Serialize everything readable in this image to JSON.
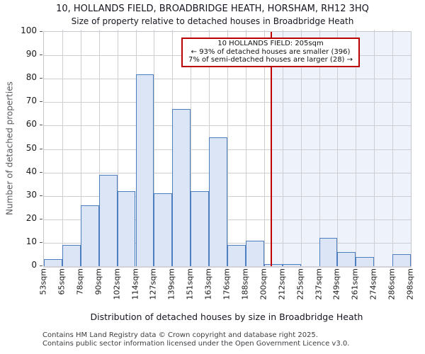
{
  "title": "10, HOLLANDS FIELD, BROADBRIDGE HEATH, HORSHAM, RH12 3HQ",
  "subtitle": "Size of property relative to detached houses in Broadbridge Heath",
  "annotation": {
    "line1": "10 HOLLANDS FIELD: 205sqm",
    "line2": "← 93% of detached houses are smaller (396)",
    "line3": "7% of semi-detached houses are larger (28) →"
  },
  "marker": {
    "value_sqm": 205,
    "line_color": "#c00000",
    "region_color": "#edf2fb"
  },
  "chart_data": {
    "type": "bar",
    "title": "10, HOLLANDS FIELD, BROADBRIDGE HEATH, HORSHAM, RH12 3HQ",
    "subtitle": "Size of property relative to detached houses in Broadbridge Heath",
    "xlabel": "Distribution of detached houses by size in Broadbridge Heath",
    "ylabel": "Number of detached properties",
    "bin_edges_sqm": [
      53,
      65,
      78,
      90,
      102,
      114,
      127,
      139,
      151,
      163,
      176,
      188,
      200,
      212,
      225,
      237,
      249,
      261,
      274,
      286,
      298
    ],
    "x_tick_labels": [
      "53sqm",
      "65sqm",
      "78sqm",
      "90sqm",
      "102sqm",
      "114sqm",
      "127sqm",
      "139sqm",
      "151sqm",
      "163sqm",
      "176sqm",
      "188sqm",
      "200sqm",
      "212sqm",
      "225sqm",
      "237sqm",
      "249sqm",
      "261sqm",
      "274sqm",
      "286sqm",
      "298sqm"
    ],
    "values": [
      3,
      9,
      26,
      39,
      32,
      82,
      31,
      67,
      32,
      55,
      9,
      11,
      1,
      1,
      0,
      12,
      6,
      4,
      0,
      5
    ],
    "xlim": [
      53,
      298
    ],
    "ylim": [
      0,
      100
    ],
    "y_ticks": [
      0,
      10,
      20,
      30,
      40,
      50,
      60,
      70,
      80,
      90,
      100
    ],
    "grid": true,
    "legend": "none",
    "bar_fill": "#dbe5f5",
    "bar_edge": "#4d7ebe",
    "grid_color": "#cdcdd2"
  },
  "footer": {
    "line1": "Contains HM Land Registry data © Crown copyright and database right 2025.",
    "line2": "Contains public sector information licensed under the Open Government Licence v3.0."
  }
}
